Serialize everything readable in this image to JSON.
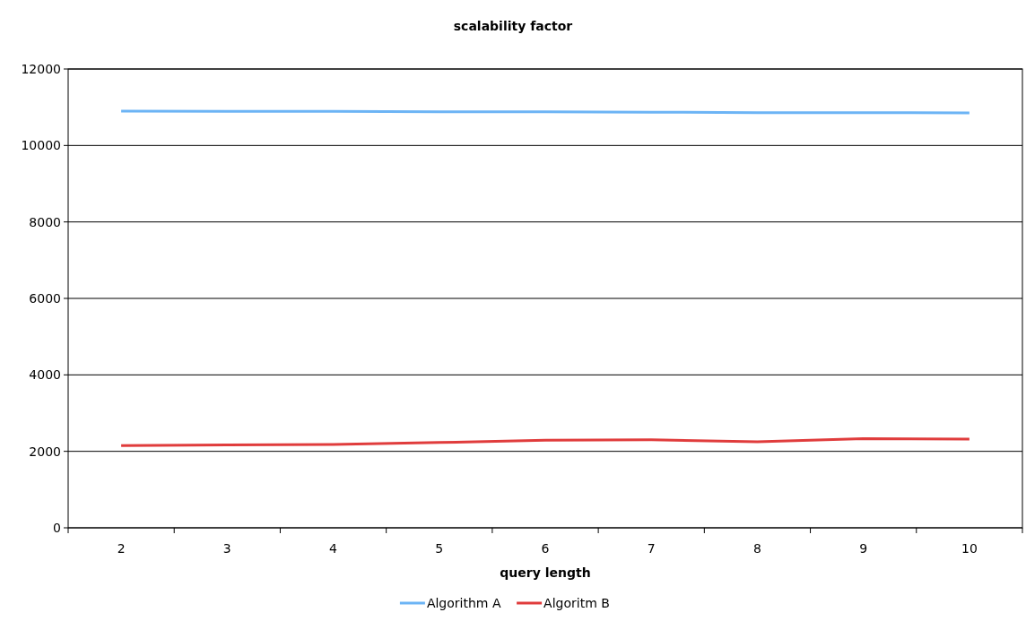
{
  "chart_data": {
    "type": "line",
    "title": "scalability factor",
    "xlabel": "query length",
    "categories": [
      "2",
      "3",
      "4",
      "5",
      "6",
      "7",
      "8",
      "9",
      "10"
    ],
    "series": [
      {
        "name": "Algorithm A",
        "color": "#6cb4f5",
        "values": [
          10900,
          10890,
          10890,
          10880,
          10880,
          10870,
          10860,
          10860,
          10850
        ]
      },
      {
        "name": "Algoritm B",
        "color": "#e03c3c",
        "values": [
          2150,
          2170,
          2180,
          2230,
          2290,
          2300,
          2250,
          2330,
          2320
        ]
      }
    ],
    "ylim": [
      0,
      12000
    ],
    "yticks": [
      0,
      2000,
      4000,
      6000,
      8000,
      10000,
      12000
    ],
    "grid": "y",
    "legend": "bottom",
    "marker": "none",
    "line_style": "solid"
  }
}
